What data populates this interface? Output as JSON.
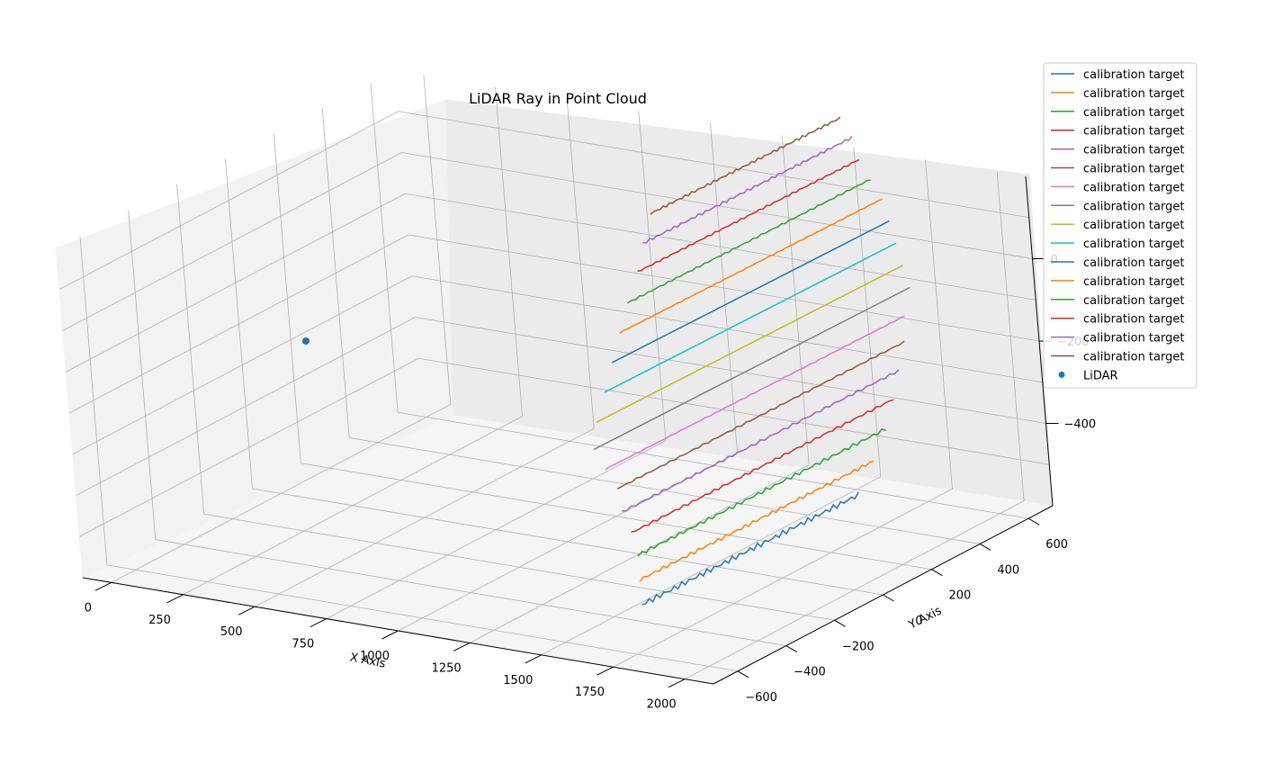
{
  "chart_data": {
    "type": "line3d",
    "title": "LiDAR Ray in Point Cloud",
    "xlabel": "X Axis",
    "ylabel": "Y Axis",
    "zlabel": "",
    "x_ticks": [
      "0",
      "250",
      "500",
      "750",
      "1000",
      "1250",
      "1500",
      "1750",
      "2000"
    ],
    "y_ticks": [
      "−600",
      "−400",
      "−200",
      "0",
      "200",
      "400",
      "600"
    ],
    "z_ticks": [
      "−400",
      "−200",
      "0"
    ],
    "grid": true,
    "legend_position": "top-right",
    "legend": [
      {
        "label": "calibration target",
        "color": "#1f77b4",
        "marker": "line"
      },
      {
        "label": "calibration target",
        "color": "#ff7f0e",
        "marker": "line"
      },
      {
        "label": "calibration target",
        "color": "#2ca02c",
        "marker": "line"
      },
      {
        "label": "calibration target",
        "color": "#d62728",
        "marker": "line"
      },
      {
        "label": "calibration target",
        "color": "#9467bd",
        "marker": "line"
      },
      {
        "label": "calibration target",
        "color": "#8c564b",
        "marker": "line"
      },
      {
        "label": "calibration target",
        "color": "#e377c2",
        "marker": "line"
      },
      {
        "label": "calibration target",
        "color": "#7f7f7f",
        "marker": "line"
      },
      {
        "label": "calibration target",
        "color": "#bcbd22",
        "marker": "line"
      },
      {
        "label": "calibration target",
        "color": "#17becf",
        "marker": "line"
      },
      {
        "label": "calibration target",
        "color": "#1f77b4",
        "marker": "line"
      },
      {
        "label": "calibration target",
        "color": "#ff7f0e",
        "marker": "line"
      },
      {
        "label": "calibration target",
        "color": "#2ca02c",
        "marker": "line"
      },
      {
        "label": "calibration target",
        "color": "#d62728",
        "marker": "line"
      },
      {
        "label": "calibration target",
        "color": "#9467bd",
        "marker": "line"
      },
      {
        "label": "calibration target",
        "color": "#8c564b",
        "marker": "line"
      },
      {
        "label": "LiDAR",
        "color": "#1f77b4",
        "marker": "dot"
      }
    ],
    "series": [
      {
        "color": "#1f77b4",
        "points": [
          [
            1620,
            -420,
            -550
          ],
          [
            1640,
            450,
            -550
          ]
        ],
        "noise": 3
      },
      {
        "color": "#ff7f0e",
        "points": [
          [
            1620,
            -420,
            -490
          ],
          [
            1640,
            520,
            -490
          ]
        ],
        "noise": 2
      },
      {
        "color": "#2ca02c",
        "points": [
          [
            1620,
            -420,
            -430
          ],
          [
            1640,
            580,
            -430
          ]
        ],
        "noise": 2
      },
      {
        "color": "#d62728",
        "points": [
          [
            1620,
            -440,
            -370
          ],
          [
            1640,
            620,
            -370
          ]
        ],
        "noise": 1.5
      },
      {
        "color": "#9467bd",
        "points": [
          [
            1620,
            -470,
            -310
          ],
          [
            1640,
            650,
            -310
          ]
        ],
        "noise": 1.5
      },
      {
        "color": "#8c564b",
        "points": [
          [
            1620,
            -480,
            -250
          ],
          [
            1640,
            680,
            -250
          ]
        ],
        "noise": 1
      },
      {
        "color": "#e377c2",
        "points": [
          [
            1620,
            -520,
            -190
          ],
          [
            1640,
            690,
            -190
          ]
        ],
        "noise": 0.5
      },
      {
        "color": "#7f7f7f",
        "points": [
          [
            1620,
            -560,
            -130
          ],
          [
            1640,
            720,
            -130
          ]
        ],
        "noise": 0
      },
      {
        "color": "#bcbd22",
        "points": [
          [
            1620,
            -540,
            -70
          ],
          [
            1640,
            700,
            -70
          ]
        ],
        "noise": 0
      },
      {
        "color": "#17becf",
        "points": [
          [
            1620,
            -500,
            -10
          ],
          [
            1640,
            680,
            -10
          ]
        ],
        "noise": 0
      },
      {
        "color": "#1f77b4",
        "points": [
          [
            1620,
            -460,
            50
          ],
          [
            1640,
            660,
            50
          ]
        ],
        "noise": 0
      },
      {
        "color": "#ff7f0e",
        "points": [
          [
            1620,
            -420,
            110
          ],
          [
            1640,
            640,
            110
          ]
        ],
        "noise": 0.5
      },
      {
        "color": "#2ca02c",
        "points": [
          [
            1620,
            -380,
            170
          ],
          [
            1640,
            600,
            170
          ]
        ],
        "noise": 1
      },
      {
        "color": "#d62728",
        "points": [
          [
            1620,
            -330,
            230
          ],
          [
            1640,
            560,
            230
          ]
        ],
        "noise": 1
      },
      {
        "color": "#9467bd",
        "points": [
          [
            1620,
            -300,
            290
          ],
          [
            1640,
            540,
            290
          ]
        ],
        "noise": 1.5
      },
      {
        "color": "#8c564b",
        "points": [
          [
            1620,
            -260,
            350
          ],
          [
            1640,
            500,
            350
          ]
        ],
        "noise": 1.5
      }
    ],
    "lidar_point": {
      "x": 0,
      "y": 0,
      "z": 0,
      "color": "#1f77b4"
    }
  }
}
